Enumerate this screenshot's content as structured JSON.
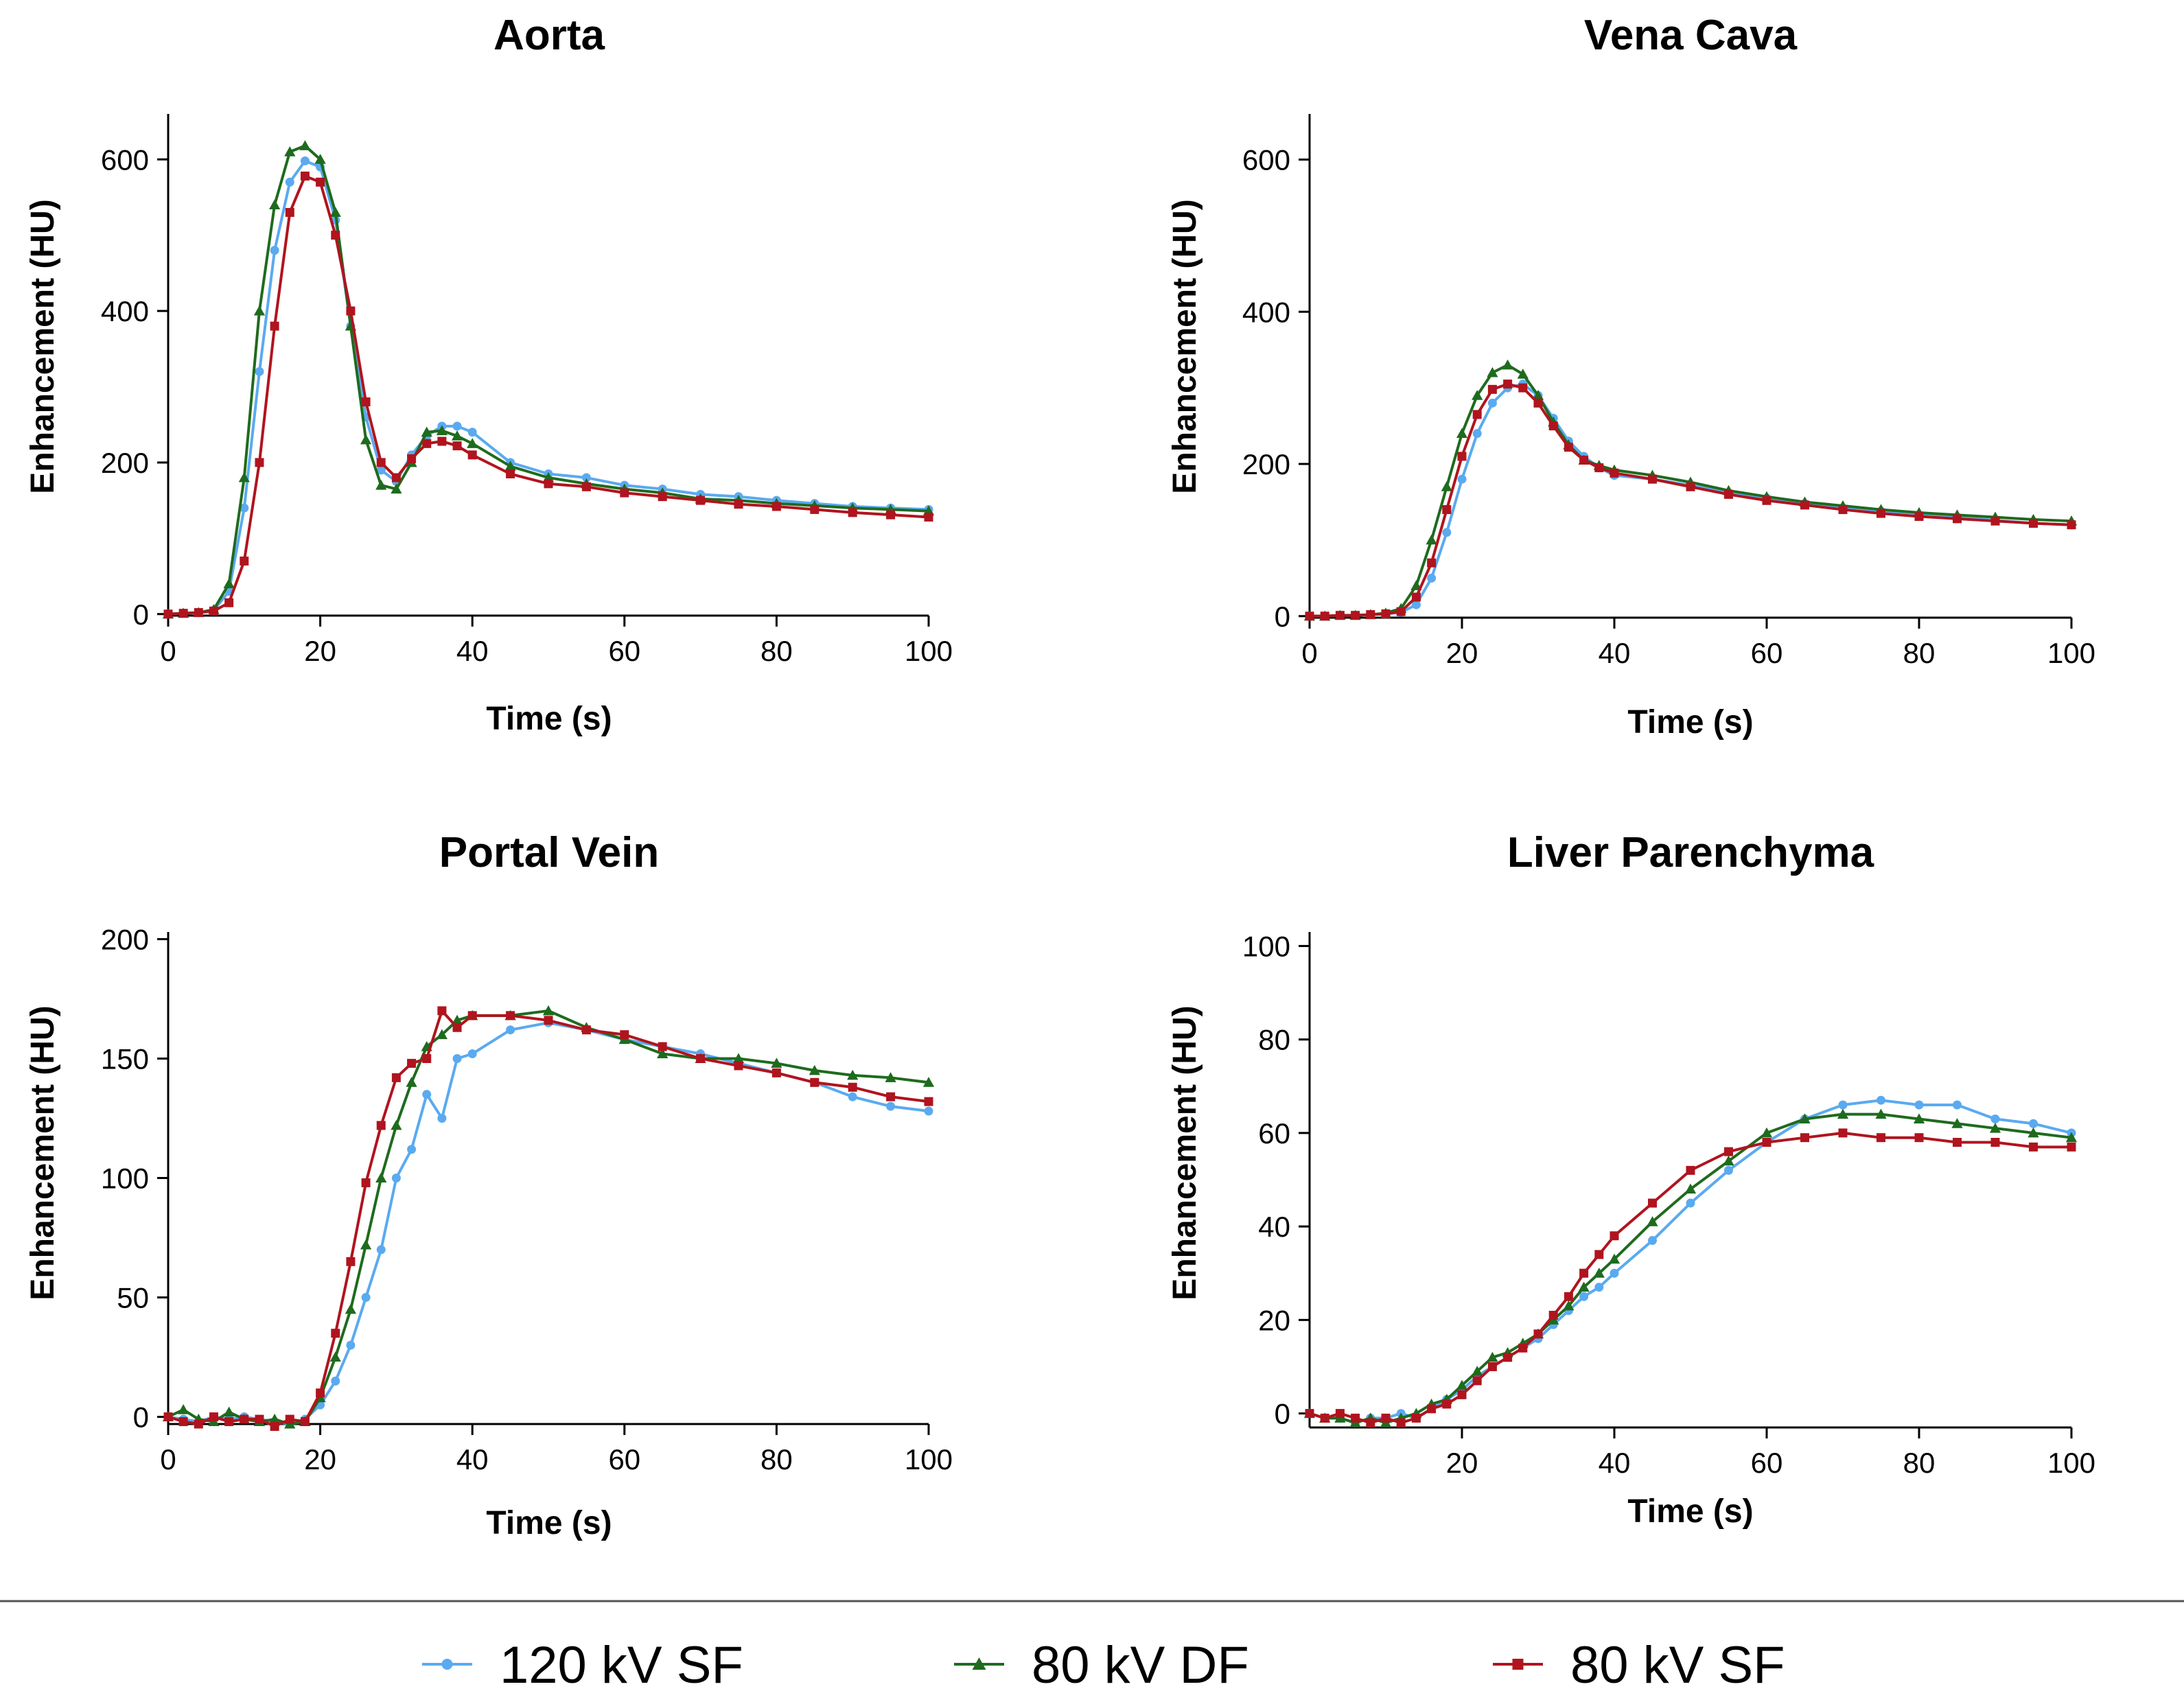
{
  "legend": [
    {
      "name": "120 kV SF",
      "color": "#5aaaf0",
      "marker": "circle"
    },
    {
      "name": "80 kV DF",
      "color": "#1e6b1e",
      "marker": "triangle"
    },
    {
      "name": "80 kV SF",
      "color": "#b0141e",
      "marker": "square"
    }
  ],
  "chart_data": [
    {
      "type": "line",
      "title": "Aorta",
      "xlabel": "Time (s)",
      "ylabel": "Enhancement (HU)",
      "xlim": [
        0,
        100
      ],
      "ylim": [
        0,
        650
      ],
      "xticks": [
        0,
        20,
        40,
        60,
        80,
        100
      ],
      "yticks": [
        0,
        200,
        400,
        600
      ],
      "x": [
        0,
        2,
        4,
        6,
        8,
        10,
        12,
        14,
        16,
        18,
        20,
        22,
        24,
        26,
        28,
        30,
        32,
        34,
        36,
        38,
        40,
        45,
        50,
        55,
        60,
        65,
        70,
        75,
        80,
        85,
        90,
        95,
        100
      ],
      "series": [
        {
          "name": "120 kV SF",
          "values": [
            0,
            1,
            2,
            5,
            30,
            140,
            320,
            480,
            570,
            598,
            590,
            520,
            380,
            260,
            190,
            175,
            210,
            235,
            248,
            248,
            240,
            200,
            185,
            180,
            170,
            165,
            158,
            155,
            150,
            146,
            142,
            140,
            138
          ]
        },
        {
          "name": "80 kV DF",
          "values": [
            0,
            1,
            2,
            6,
            40,
            180,
            400,
            540,
            610,
            618,
            600,
            530,
            380,
            230,
            170,
            165,
            200,
            240,
            242,
            235,
            225,
            195,
            180,
            172,
            165,
            160,
            152,
            150,
            146,
            143,
            140,
            138,
            136
          ]
        },
        {
          "name": "80 kV SF",
          "values": [
            0,
            1,
            2,
            4,
            15,
            70,
            200,
            380,
            530,
            578,
            570,
            500,
            400,
            280,
            200,
            180,
            205,
            225,
            228,
            222,
            210,
            185,
            172,
            168,
            160,
            155,
            150,
            145,
            142,
            138,
            134,
            131,
            128
          ]
        }
      ]
    },
    {
      "type": "line",
      "title": "Vena Cava",
      "xlabel": "Time (s)",
      "ylabel": "Enhancement (HU)",
      "xlim": [
        0,
        100
      ],
      "ylim": [
        0,
        650
      ],
      "xticks": [
        0,
        20,
        40,
        60,
        80,
        100
      ],
      "yticks": [
        0,
        200,
        400,
        600
      ],
      "x": [
        0,
        2,
        4,
        6,
        8,
        10,
        12,
        14,
        16,
        18,
        20,
        22,
        24,
        26,
        28,
        30,
        32,
        34,
        36,
        38,
        40,
        45,
        50,
        55,
        60,
        65,
        70,
        75,
        80,
        85,
        90,
        95,
        100
      ],
      "series": [
        {
          "name": "120 kV SF",
          "values": [
            0,
            0,
            1,
            1,
            2,
            3,
            5,
            15,
            50,
            110,
            180,
            240,
            280,
            300,
            305,
            290,
            260,
            230,
            210,
            195,
            185,
            180,
            172,
            162,
            155,
            148,
            142,
            138,
            133,
            130,
            126,
            122,
            120
          ]
        },
        {
          "name": "80 kV DF",
          "values": [
            0,
            0,
            1,
            1,
            2,
            4,
            10,
            40,
            100,
            170,
            240,
            290,
            320,
            330,
            318,
            290,
            255,
            225,
            205,
            198,
            192,
            185,
            176,
            165,
            157,
            150,
            145,
            140,
            136,
            133,
            130,
            127,
            125
          ]
        },
        {
          "name": "80 kV SF",
          "values": [
            0,
            0,
            1,
            1,
            2,
            3,
            6,
            25,
            70,
            140,
            210,
            265,
            298,
            305,
            300,
            280,
            250,
            222,
            205,
            195,
            188,
            180,
            170,
            160,
            152,
            146,
            140,
            135,
            131,
            128,
            125,
            122,
            120
          ]
        }
      ]
    },
    {
      "type": "line",
      "title": "Portal Vein",
      "xlabel": "Time (s)",
      "ylabel": "Enhancement (HU)",
      "xlim": [
        0,
        100
      ],
      "ylim": [
        0,
        200
      ],
      "xticks": [
        0,
        20,
        40,
        60,
        80,
        100
      ],
      "yticks": [
        0,
        50,
        100,
        150,
        200
      ],
      "x": [
        0,
        2,
        4,
        6,
        8,
        10,
        12,
        14,
        16,
        18,
        20,
        22,
        24,
        26,
        28,
        30,
        32,
        34,
        36,
        38,
        40,
        45,
        50,
        55,
        60,
        65,
        70,
        75,
        80,
        85,
        90,
        95,
        100
      ],
      "series": [
        {
          "name": "120 kV SF",
          "values": [
            0,
            -1,
            -2,
            0,
            -1,
            0,
            -1,
            -2,
            -3,
            -1,
            5,
            15,
            30,
            50,
            70,
            100,
            112,
            135,
            125,
            150,
            152,
            162,
            165,
            162,
            158,
            155,
            152,
            148,
            144,
            140,
            134,
            130,
            128
          ]
        },
        {
          "name": "80 kV DF",
          "values": [
            0,
            3,
            -1,
            -2,
            2,
            -1,
            -2,
            -1,
            -3,
            -2,
            8,
            25,
            45,
            72,
            100,
            122,
            140,
            155,
            160,
            166,
            168,
            168,
            170,
            163,
            158,
            152,
            150,
            150,
            148,
            145,
            143,
            142,
            140
          ]
        },
        {
          "name": "80 kV SF",
          "values": [
            0,
            -2,
            -3,
            0,
            -2,
            -1,
            -1,
            -4,
            -1,
            -2,
            10,
            35,
            65,
            98,
            122,
            142,
            148,
            150,
            170,
            163,
            168,
            168,
            166,
            162,
            160,
            155,
            150,
            147,
            144,
            140,
            138,
            134,
            132
          ]
        }
      ]
    },
    {
      "type": "line",
      "title": "Liver Parenchyma",
      "xlabel": "Time (s)",
      "ylabel": "Enhancement (HU)",
      "xlim": [
        0,
        100
      ],
      "ylim": [
        -3,
        100
      ],
      "xticks": [
        20,
        40,
        60,
        80,
        100
      ],
      "yticks": [
        0,
        20,
        40,
        60,
        80,
        100
      ],
      "x": [
        0,
        2,
        4,
        6,
        8,
        10,
        12,
        14,
        16,
        18,
        20,
        22,
        24,
        26,
        28,
        30,
        32,
        34,
        36,
        38,
        40,
        45,
        50,
        55,
        60,
        65,
        70,
        75,
        80,
        85,
        90,
        95,
        100
      ],
      "series": [
        {
          "name": "120 kV SF",
          "values": [
            0,
            -1,
            -1,
            -2,
            -1,
            -1,
            0,
            -1,
            1,
            3,
            5,
            8,
            10,
            12,
            14,
            16,
            19,
            22,
            25,
            27,
            30,
            37,
            45,
            52,
            58,
            63,
            66,
            67,
            66,
            66,
            63,
            62,
            60
          ]
        },
        {
          "name": "80 kV DF",
          "values": [
            0,
            -1,
            -1,
            -2,
            -1,
            -2,
            -1,
            0,
            2,
            3,
            6,
            9,
            12,
            13,
            15,
            17,
            20,
            23,
            27,
            30,
            33,
            41,
            48,
            54,
            60,
            63,
            64,
            64,
            63,
            62,
            61,
            60,
            59
          ]
        },
        {
          "name": "80 kV SF",
          "values": [
            0,
            -1,
            0,
            -1,
            -2,
            -1,
            -2,
            -1,
            1,
            2,
            4,
            7,
            10,
            12,
            14,
            17,
            21,
            25,
            30,
            34,
            38,
            45,
            52,
            56,
            58,
            59,
            60,
            59,
            59,
            58,
            58,
            57,
            57
          ]
        }
      ]
    }
  ]
}
